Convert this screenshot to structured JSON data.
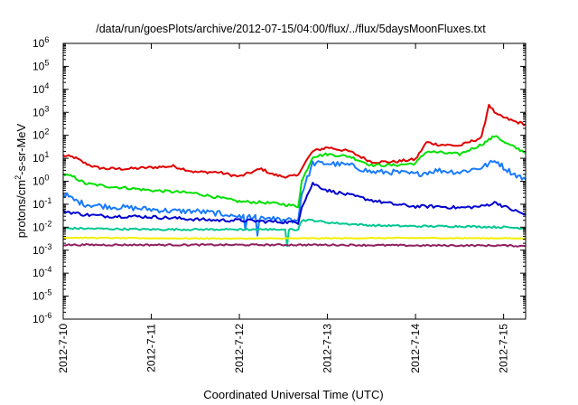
{
  "chart_data": {
    "type": "line",
    "title": "/data/run/goesPlots/archive/2012-07-15/04:00/flux/../flux/5daysMoonFluxes.txt",
    "xlabel": "Coordinated Universal Time (UTC)",
    "ylabel": "protons/cm²-s-sr-MeV",
    "ylabel_parts": {
      "before": "protons/cm",
      "sup": "2",
      "after": "-s-sr-MeV"
    },
    "y_scale": "log",
    "ylim": [
      1e-06,
      1000000
    ],
    "xlim": [
      "2012-07-10 00:00",
      "2012-07-15 06:00"
    ],
    "x_ticks": [
      "2012-7-10",
      "2012-7-11",
      "2012-7-12",
      "2012-7-13",
      "2012-7-14",
      "2012-7-15"
    ],
    "y_ticks": [
      {
        "base": "10",
        "exp": "-6"
      },
      {
        "base": "10",
        "exp": "-5"
      },
      {
        "base": "10",
        "exp": "-4"
      },
      {
        "base": "10",
        "exp": "-3"
      },
      {
        "base": "10",
        "exp": "-2"
      },
      {
        "base": "10",
        "exp": "-1"
      },
      {
        "base": "10",
        "exp": "0"
      },
      {
        "base": "10",
        "exp": "1"
      },
      {
        "base": "10",
        "exp": "2"
      },
      {
        "base": "10",
        "exp": "3"
      },
      {
        "base": "10",
        "exp": "4"
      },
      {
        "base": "10",
        "exp": "5"
      },
      {
        "base": "10",
        "exp": "6"
      }
    ],
    "grid": false,
    "legend": "none",
    "series": [
      {
        "color": "#e00000",
        "x": [
          "2012-07-10 00:00",
          "2012-07-10 03:00",
          "2012-07-10 06:00",
          "2012-07-10 09:00",
          "2012-07-10 12:00",
          "2012-07-10 18:00",
          "2012-07-11 00:00",
          "2012-07-11 06:00",
          "2012-07-11 12:00",
          "2012-07-11 18:00",
          "2012-07-12 00:00",
          "2012-07-12 06:00",
          "2012-07-12 09:00",
          "2012-07-12 12:00",
          "2012-07-12 16:00",
          "2012-07-12 17:00",
          "2012-07-12 20:00",
          "2012-07-13 00:00",
          "2012-07-13 06:00",
          "2012-07-13 12:00",
          "2012-07-13 18:00",
          "2012-07-14 00:00",
          "2012-07-14 03:00",
          "2012-07-14 06:00",
          "2012-07-14 12:00",
          "2012-07-14 18:00",
          "2012-07-14 20:00",
          "2012-07-14 22:00",
          "2012-07-15 00:00",
          "2012-07-15 03:00",
          "2012-07-15 06:00"
        ],
        "y": [
          13,
          11,
          6,
          4,
          3.5,
          3.5,
          4,
          4.5,
          2.5,
          2.5,
          1.6,
          3.5,
          2,
          1.6,
          1.7,
          4,
          20,
          30,
          20,
          7,
          7,
          9,
          50,
          40,
          35,
          80,
          2200,
          800,
          600,
          400,
          300
        ]
      },
      {
        "color": "#00e000",
        "x": [
          "2012-07-10 00:00",
          "2012-07-10 03:00",
          "2012-07-10 06:00",
          "2012-07-10 12:00",
          "2012-07-10 18:00",
          "2012-07-11 00:00",
          "2012-07-11 06:00",
          "2012-07-11 12:00",
          "2012-07-11 18:00",
          "2012-07-12 00:00",
          "2012-07-12 06:00",
          "2012-07-12 12:00",
          "2012-07-12 16:00",
          "2012-07-12 17:00",
          "2012-07-12 20:00",
          "2012-07-13 00:00",
          "2012-07-13 06:00",
          "2012-07-13 12:00",
          "2012-07-13 18:00",
          "2012-07-14 00:00",
          "2012-07-14 03:00",
          "2012-07-14 06:00",
          "2012-07-14 12:00",
          "2012-07-14 18:00",
          "2012-07-14 22:00",
          "2012-07-15 00:00",
          "2012-07-15 03:00",
          "2012-07-15 06:00"
        ],
        "y": [
          2,
          1.5,
          0.8,
          0.6,
          0.5,
          0.4,
          0.35,
          0.3,
          0.2,
          0.13,
          0.12,
          0.1,
          0.08,
          1,
          12,
          15,
          12,
          5,
          5,
          6,
          20,
          18,
          15,
          40,
          100,
          50,
          30,
          18
        ]
      },
      {
        "color": "#1a7bff",
        "x": [
          "2012-07-10 00:00",
          "2012-07-10 03:00",
          "2012-07-10 06:00",
          "2012-07-10 12:00",
          "2012-07-10 18:00",
          "2012-07-11 00:00",
          "2012-07-11 06:00",
          "2012-07-11 12:00",
          "2012-07-11 18:00",
          "2012-07-12 00:00",
          "2012-07-12 06:00",
          "2012-07-12 12:00",
          "2012-07-12 16:00",
          "2012-07-12 17:00",
          "2012-07-12 20:00",
          "2012-07-13 00:00",
          "2012-07-13 06:00",
          "2012-07-13 12:00",
          "2012-07-13 18:00",
          "2012-07-14 00:00",
          "2012-07-14 06:00",
          "2012-07-14 12:00",
          "2012-07-14 18:00",
          "2012-07-14 22:00",
          "2012-07-15 00:00",
          "2012-07-15 03:00",
          "2012-07-15 06:00"
        ],
        "y": [
          0.3,
          0.15,
          0.1,
          0.08,
          0.07,
          0.06,
          0.05,
          0.05,
          0.04,
          0.03,
          0.025,
          0.02,
          0.02,
          0.3,
          6,
          6,
          5,
          2.5,
          2.5,
          2,
          3,
          2.5,
          4,
          8,
          4,
          2,
          1.2
        ]
      },
      {
        "color": "#0000d0",
        "x": [
          "2012-07-10 00:00",
          "2012-07-10 06:00",
          "2012-07-10 12:00",
          "2012-07-10 18:00",
          "2012-07-11 00:00",
          "2012-07-11 06:00",
          "2012-07-11 12:00",
          "2012-07-11 18:00",
          "2012-07-12 00:00",
          "2012-07-12 06:00",
          "2012-07-12 12:00",
          "2012-07-12 16:00",
          "2012-07-12 17:00",
          "2012-07-12 20:00",
          "2012-07-13 00:00",
          "2012-07-13 06:00",
          "2012-07-13 12:00",
          "2012-07-13 18:00",
          "2012-07-14 00:00",
          "2012-07-14 06:00",
          "2012-07-14 12:00",
          "2012-07-14 18:00",
          "2012-07-14 22:00",
          "2012-07-15 00:00",
          "2012-07-15 06:00"
        ],
        "y": [
          0.05,
          0.035,
          0.03,
          0.03,
          0.028,
          0.025,
          0.022,
          0.02,
          0.02,
          0.018,
          0.017,
          0.016,
          0.08,
          0.8,
          0.4,
          0.25,
          0.15,
          0.1,
          0.08,
          0.08,
          0.07,
          0.08,
          0.12,
          0.08,
          0.035
        ]
      },
      {
        "color": "#00c890",
        "x": [
          "2012-07-10 00:00",
          "2012-07-10 12:00",
          "2012-07-11 00:00",
          "2012-07-11 12:00",
          "2012-07-12 00:00",
          "2012-07-12 12:00",
          "2012-07-12 16:00",
          "2012-07-12 17:00",
          "2012-07-12 20:00",
          "2012-07-13 00:00",
          "2012-07-13 12:00",
          "2012-07-14 00:00",
          "2012-07-14 12:00",
          "2012-07-15 00:00",
          "2012-07-15 06:00"
        ],
        "y": [
          0.009,
          0.0085,
          0.008,
          0.008,
          0.008,
          0.008,
          0.008,
          0.02,
          0.02,
          0.016,
          0.012,
          0.011,
          0.011,
          0.01,
          0.009
        ]
      },
      {
        "color": "#f0f000",
        "x": [
          "2012-07-10 00:00",
          "2012-07-11 00:00",
          "2012-07-12 00:00",
          "2012-07-13 00:00",
          "2012-07-14 00:00",
          "2012-07-15 00:00",
          "2012-07-15 06:00"
        ],
        "y": [
          0.0035,
          0.0033,
          0.0032,
          0.0033,
          0.0034,
          0.0033,
          0.0032
        ]
      },
      {
        "color": "#902060",
        "x": [
          "2012-07-10 00:00",
          "2012-07-11 00:00",
          "2012-07-12 00:00",
          "2012-07-13 00:00",
          "2012-07-14 00:00",
          "2012-07-15 00:00",
          "2012-07-15 06:00"
        ],
        "y": [
          0.0017,
          0.0017,
          0.0017,
          0.0017,
          0.0016,
          0.0016,
          0.0015
        ]
      }
    ]
  }
}
